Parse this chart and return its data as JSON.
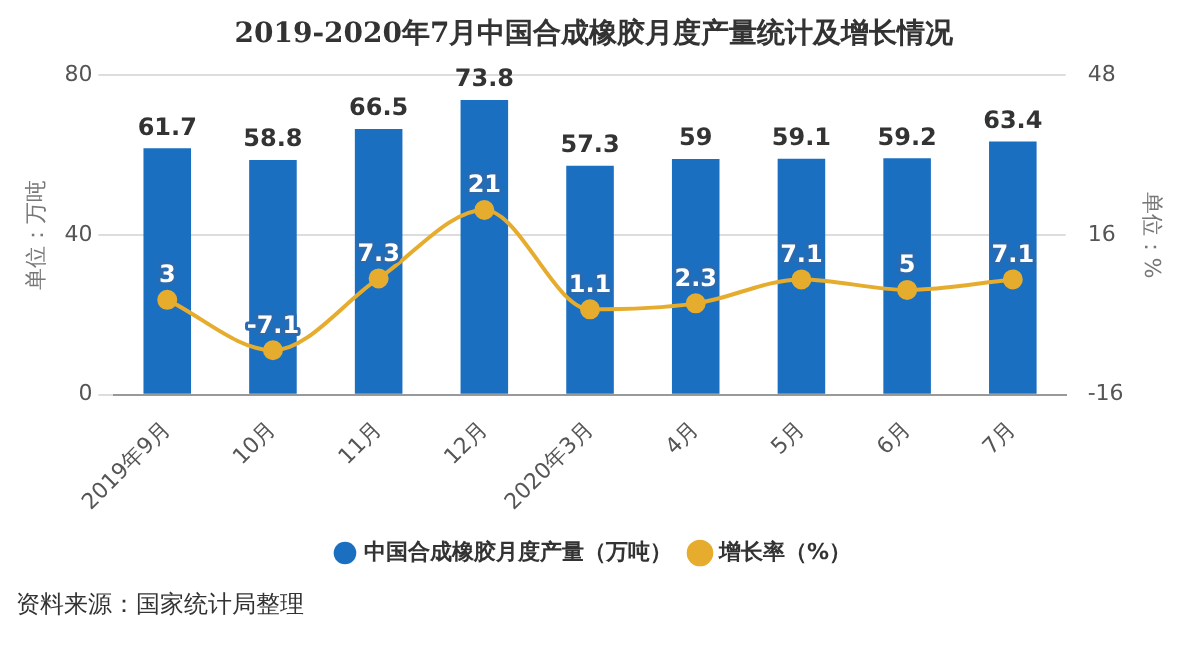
{
  "chart_data": {
    "type": "bar",
    "title": "2019-2020年7月中国合成橡胶月度产量统计及增长情况",
    "categories": [
      "2019年9月",
      "10月",
      "11月",
      "12月",
      "2020年3月",
      "4月",
      "5月",
      "6月",
      "7月"
    ],
    "series": [
      {
        "name": "中国合成橡胶月度产量（万吨）",
        "color": "#1a6fc0",
        "values": [
          61.7,
          58.8,
          66.5,
          73.8,
          57.3,
          59,
          59.1,
          59.2,
          63.4
        ]
      },
      {
        "name": "增长率（%）",
        "type": "line",
        "axis": "y2",
        "color": "#e6ac2e",
        "marker": "circle",
        "values": [
          3,
          -7.1,
          7.3,
          21,
          1.1,
          2.3,
          7.1,
          5,
          7.1
        ]
      }
    ],
    "ylabel": "单位：万吨",
    "y2label": "单位：%",
    "ylim": [
      0,
      80
    ],
    "yticks": [
      0,
      40,
      80
    ],
    "y2lim": [
      -16,
      48
    ],
    "y2ticks": [
      -16,
      16,
      48
    ],
    "grid": "y",
    "legend": "bottom",
    "data_labels": true,
    "annotations": [
      "资料来源：国家统计局整理"
    ]
  }
}
